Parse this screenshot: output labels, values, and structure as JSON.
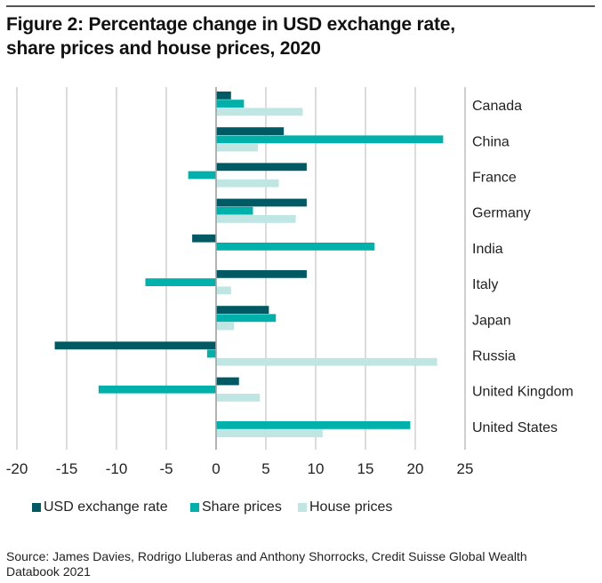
{
  "figure": {
    "title_line1": "Figure 2: Percentage change in USD exchange rate,",
    "title_line2": "share prices and house prices, 2020",
    "source_line1": "Source: James Davies, Rodrigo Lluberas and Anthony Shorrocks, Credit Suisse Global Wealth",
    "source_line2": "Databook 2021"
  },
  "chart_data": {
    "type": "bar",
    "orientation": "horizontal",
    "title": "Percentage change in USD exchange rate, share prices and house prices, 2020",
    "xlabel": "",
    "ylabel": "",
    "xlim": [
      -20,
      25
    ],
    "xticks": [
      -20,
      -15,
      -10,
      -5,
      0,
      5,
      10,
      15,
      20,
      25
    ],
    "xtick_labels": [
      "-20",
      "-15",
      "-10",
      "-5",
      "0",
      "5",
      "10",
      "15",
      "20",
      "25"
    ],
    "grid": "vertical",
    "legend_position": "bottom",
    "categories": [
      "Canada",
      "China",
      "France",
      "Germany",
      "India",
      "Italy",
      "Japan",
      "Russia",
      "United Kingdom",
      "United States"
    ],
    "series": [
      {
        "name": "USD exchange rate",
        "color": "#005a64",
        "values": [
          1.5,
          6.8,
          9.1,
          9.1,
          -2.4,
          9.1,
          5.3,
          -16.2,
          2.3,
          0.0
        ]
      },
      {
        "name": "Share prices",
        "color": "#00b0aa",
        "values": [
          2.8,
          22.8,
          -2.8,
          3.7,
          15.9,
          -7.1,
          6.0,
          -0.9,
          -11.8,
          19.5
        ]
      },
      {
        "name": "House prices",
        "color": "#c0e6e3",
        "values": [
          8.7,
          4.2,
          6.3,
          8.0,
          0.0,
          1.5,
          1.8,
          22.2,
          4.4,
          10.7
        ]
      }
    ]
  },
  "colors": {
    "gridline": "#c8c8c8",
    "zero_line": "#a0a0a0",
    "right_axis": "#b4b4b4"
  }
}
